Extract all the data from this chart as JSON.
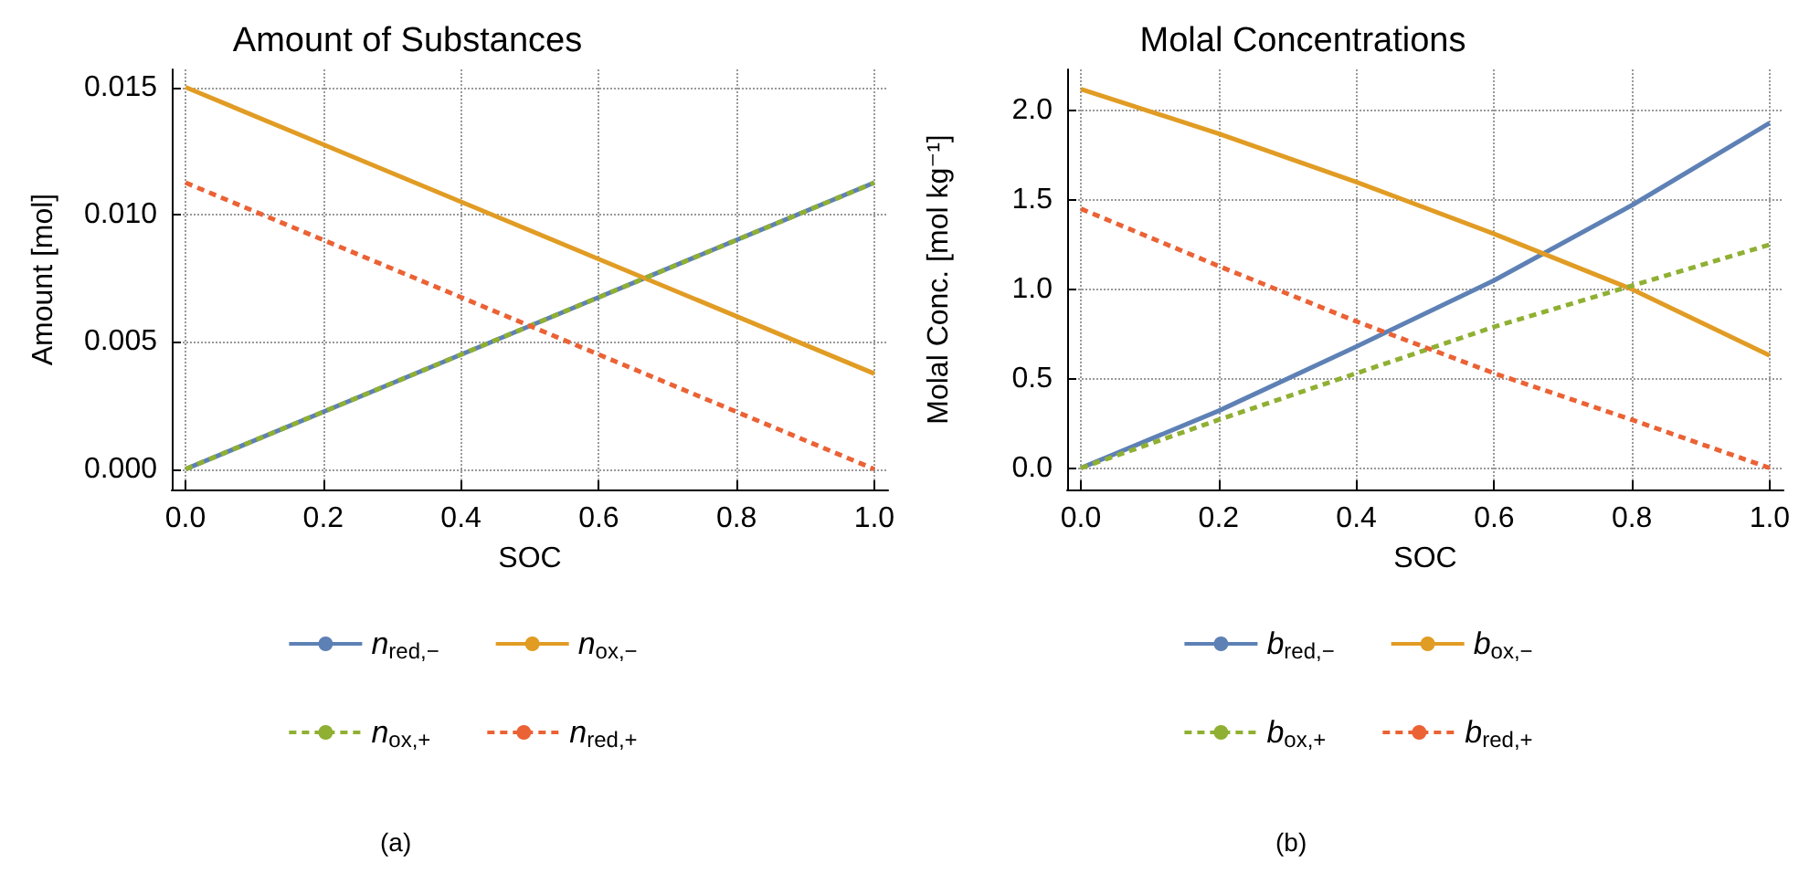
{
  "chart_data": [
    {
      "type": "line",
      "title": "Amount of Substances",
      "xlabel": "SOC",
      "ylabel": "Amount [mol]",
      "x": [
        0,
        0.2,
        0.4,
        0.6,
        0.8,
        1.0
      ],
      "series": [
        {
          "name": "n$_{red,−}$",
          "color": "#5e81b5",
          "line_style": "solid",
          "values": [
            0,
            0.00225,
            0.0045,
            0.00675,
            0.009,
            0.01125
          ]
        },
        {
          "name": "n$_{ox,−}$",
          "color": "#e19c24",
          "line_style": "solid",
          "values": [
            0.015,
            0.01275,
            0.0105,
            0.00825,
            0.006,
            0.00375
          ]
        },
        {
          "name": "n$_{ox,+}$",
          "color": "#8fb032",
          "line_style": "dashed",
          "values": [
            0,
            0.00225,
            0.0045,
            0.00675,
            0.009,
            0.01125
          ]
        },
        {
          "name": "n$_{red,+}$",
          "color": "#eb6235",
          "line_style": "dashed",
          "values": [
            0.01125,
            0.009,
            0.00675,
            0.0045,
            0.00225,
            0
          ]
        }
      ],
      "xlim": [
        -0.02,
        1.02
      ],
      "ylim": [
        -0.0008,
        0.0157
      ],
      "xticks": [
        {
          "value": 0,
          "label": "0.0"
        },
        {
          "value": 0.2,
          "label": "0.2"
        },
        {
          "value": 0.4,
          "label": "0.4"
        },
        {
          "value": 0.6,
          "label": "0.6"
        },
        {
          "value": 0.8,
          "label": "0.8"
        },
        {
          "value": 1.0,
          "label": "1.0"
        }
      ],
      "yticks": [
        {
          "value": 0,
          "label": "0.000"
        },
        {
          "value": 0.005,
          "label": "0.005"
        },
        {
          "value": 0.01,
          "label": "0.010"
        },
        {
          "value": 0.015,
          "label": "0.015"
        }
      ],
      "grid": true,
      "legend": "bottom",
      "marker": "none",
      "annotations": [
        "(a)"
      ]
    },
    {
      "type": "line",
      "title": "Molal Concentrations",
      "xlabel": "SOC",
      "ylabel": "Molal Conc. [mol kg⁻¹]",
      "x": [
        0,
        0.2,
        0.4,
        0.6,
        0.8,
        1.0
      ],
      "series": [
        {
          "name": "b$_{red,−}$",
          "color": "#5e81b5",
          "line_style": "solid",
          "values": [
            0,
            0.32,
            0.68,
            1.05,
            1.47,
            1.93
          ]
        },
        {
          "name": "b$_{ox,−}$",
          "color": "#e19c24",
          "line_style": "solid",
          "values": [
            2.12,
            1.87,
            1.6,
            1.31,
            1.0,
            0.63
          ]
        },
        {
          "name": "b$_{ox,+}$",
          "color": "#8fb032",
          "line_style": "dashed",
          "values": [
            0,
            0.27,
            0.53,
            0.79,
            1.02,
            1.25
          ]
        },
        {
          "name": "b$_{red,+}$",
          "color": "#eb6235",
          "line_style": "dashed",
          "values": [
            1.45,
            1.13,
            0.82,
            0.53,
            0.27,
            0
          ]
        }
      ],
      "xlim": [
        -0.02,
        1.02
      ],
      "ylim": [
        -0.12,
        2.23
      ],
      "xticks": [
        {
          "value": 0,
          "label": "0.0"
        },
        {
          "value": 0.2,
          "label": "0.2"
        },
        {
          "value": 0.4,
          "label": "0.4"
        },
        {
          "value": 0.6,
          "label": "0.6"
        },
        {
          "value": 0.8,
          "label": "0.8"
        },
        {
          "value": 1.0,
          "label": "1.0"
        }
      ],
      "yticks": [
        {
          "value": 0,
          "label": "0.0"
        },
        {
          "value": 0.5,
          "label": "0.5"
        },
        {
          "value": 1.0,
          "label": "1.0"
        },
        {
          "value": 1.5,
          "label": "1.5"
        },
        {
          "value": 2.0,
          "label": "2.0"
        }
      ],
      "grid": true,
      "legend": "bottom",
      "marker": "none",
      "annotations": [
        "(b)"
      ]
    }
  ]
}
